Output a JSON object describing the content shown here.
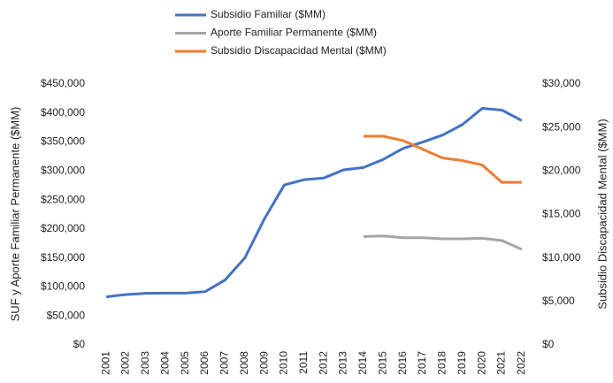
{
  "chart_data": {
    "type": "line",
    "categories": [
      "2001",
      "2002",
      "2003",
      "2004",
      "2005",
      "2006",
      "2007",
      "2008",
      "2009",
      "2010",
      "2011",
      "2012",
      "2013",
      "2014",
      "2015",
      "2016",
      "2017",
      "2018",
      "2019",
      "2020",
      "2021",
      "2022"
    ],
    "series": [
      {
        "name": "Subsidio Familiar ($MM)",
        "color": "#4472c4",
        "values": [
          83000,
          87000,
          89000,
          89500,
          89500,
          92000,
          112000,
          150000,
          218000,
          276000,
          285000,
          288000,
          302000,
          306000,
          320000,
          339000,
          350000,
          362000,
          380000,
          408000,
          405000,
          387000
        ]
      },
      {
        "name": "Aporte Familiar Permanente ($MM)",
        "color": "#a5a5a5",
        "values": [
          null,
          null,
          null,
          null,
          null,
          null,
          null,
          null,
          null,
          null,
          null,
          null,
          null,
          187000,
          188000,
          185000,
          185000,
          183000,
          183000,
          184000,
          180000,
          165000
        ]
      },
      {
        "name": "Subsidio Discapacidad Mental ($MM)",
        "color": "#ed7d31",
        "axis": "y2",
        "values": [
          null,
          null,
          null,
          null,
          null,
          null,
          null,
          null,
          null,
          null,
          null,
          null,
          null,
          24000,
          24000,
          23500,
          22500,
          21500,
          21200,
          20700,
          18700,
          18700
        ]
      }
    ],
    "ylabel": "SUF y Aporte Familiar Permanente ($MM)",
    "y2label": "Subsidio Discapacidad Mental ($MM)",
    "ylim": [
      0,
      450000
    ],
    "yticks": [
      {
        "value": 0,
        "label": "$0"
      },
      {
        "value": 50000,
        "label": "$50,000"
      },
      {
        "value": 100000,
        "label": "$100,000"
      },
      {
        "value": 150000,
        "label": "$150,000"
      },
      {
        "value": 200000,
        "label": "$200,000"
      },
      {
        "value": 250000,
        "label": "$250,000"
      },
      {
        "value": 300000,
        "label": "$300,000"
      },
      {
        "value": 350000,
        "label": "$350,000"
      },
      {
        "value": 400000,
        "label": "$400,000"
      },
      {
        "value": 450000,
        "label": "$450,000"
      }
    ],
    "y2lim": [
      0,
      30000
    ],
    "y2ticks": [
      {
        "value": 0,
        "label": "$0"
      },
      {
        "value": 5000,
        "label": "$5,000"
      },
      {
        "value": 10000,
        "label": "$10,000"
      },
      {
        "value": 15000,
        "label": "$15,000"
      },
      {
        "value": 20000,
        "label": "$20,000"
      },
      {
        "value": 25000,
        "label": "$25,000"
      },
      {
        "value": 30000,
        "label": "$30,000"
      }
    ],
    "legend": "top",
    "grid": false
  }
}
